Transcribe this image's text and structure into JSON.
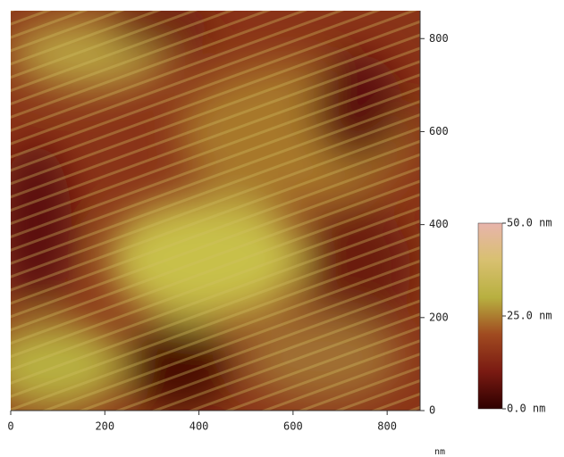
{
  "chart_data": {
    "type": "image",
    "x_label": "nm",
    "xlim": [
      0,
      870
    ],
    "xticks": [
      0,
      200,
      400,
      600,
      800
    ],
    "ylim": [
      0,
      860
    ],
    "yticks": [
      0,
      200,
      400,
      600,
      800
    ],
    "colorbar": {
      "clim": [
        0,
        50
      ],
      "ticks": [
        {
          "value": 0,
          "label": "0.0 nm"
        },
        {
          "value": 25,
          "label": "25.0 nm"
        },
        {
          "value": 50,
          "label": "50.0 nm"
        }
      ],
      "colors": [
        "#2e0000",
        "#7a1a12",
        "#a04a20",
        "#b8b040",
        "#d8c070",
        "#e8b4ac"
      ]
    }
  }
}
